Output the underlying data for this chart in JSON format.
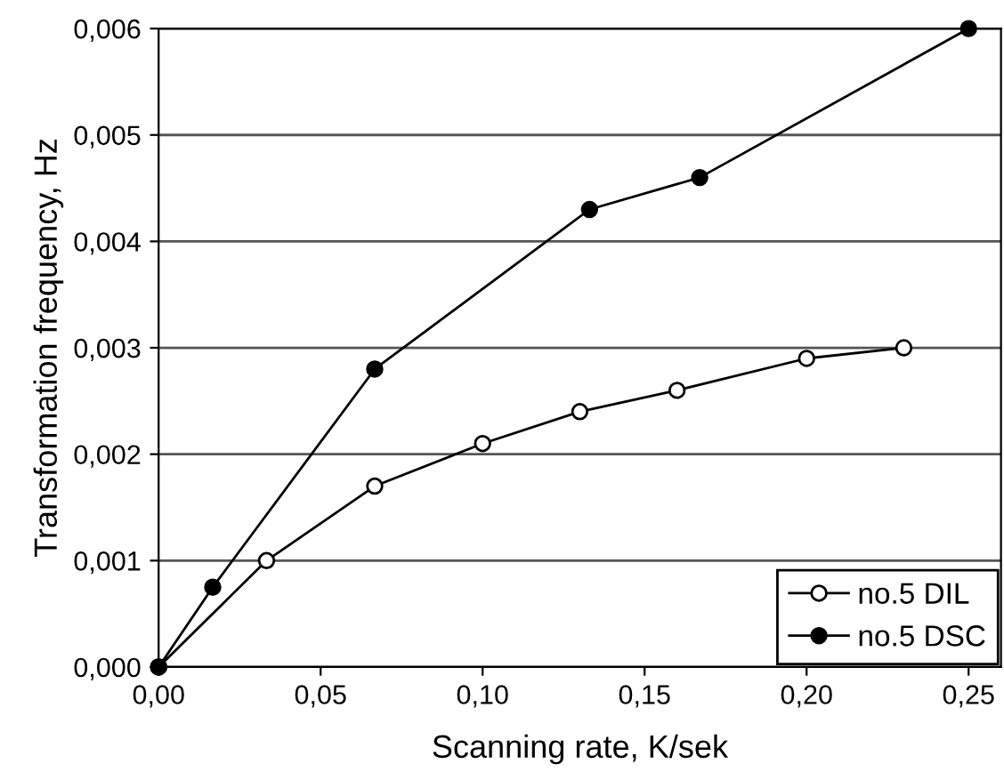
{
  "chart_data": {
    "type": "line",
    "xlabel": "Scanning rate, K/sek",
    "ylabel": "Transformation frequency, Hz",
    "xlim": [
      0,
      0.26
    ],
    "ylim": [
      0,
      0.006
    ],
    "xticks": [
      {
        "value": 0,
        "label": "0,00"
      },
      {
        "value": 0.05,
        "label": "0,05"
      },
      {
        "value": 0.1,
        "label": "0,10"
      },
      {
        "value": 0.15,
        "label": "0,15"
      },
      {
        "value": 0.2,
        "label": "0,20"
      },
      {
        "value": 0.25,
        "label": "0,25"
      }
    ],
    "yticks": [
      {
        "value": 0,
        "label": "0,000"
      },
      {
        "value": 0.001,
        "label": "0,001"
      },
      {
        "value": 0.002,
        "label": "0,002"
      },
      {
        "value": 0.003,
        "label": "0,003"
      },
      {
        "value": 0.004,
        "label": "0,004"
      },
      {
        "value": 0.005,
        "label": "0,005"
      },
      {
        "value": 0.006,
        "label": "0,006"
      }
    ],
    "grid": "y",
    "legend": "bottom right",
    "line_style": "solid",
    "series": [
      {
        "name": "no.5 DIL",
        "color": "#000000",
        "marker": "open circle",
        "x": [
          0,
          0.0333,
          0.0667,
          0.1,
          0.13,
          0.16,
          0.2,
          0.23
        ],
        "values": [
          0,
          0.001,
          0.0017,
          0.0021,
          0.0024,
          0.0026,
          0.0029,
          0.003
        ]
      },
      {
        "name": "no.5 DSC",
        "color": "#000000",
        "marker": "circle",
        "x": [
          0,
          0.0167,
          0.0667,
          0.133,
          0.167,
          0.25
        ],
        "values": [
          0,
          0.00075,
          0.0028,
          0.0043,
          0.0046,
          0.006
        ]
      }
    ]
  }
}
